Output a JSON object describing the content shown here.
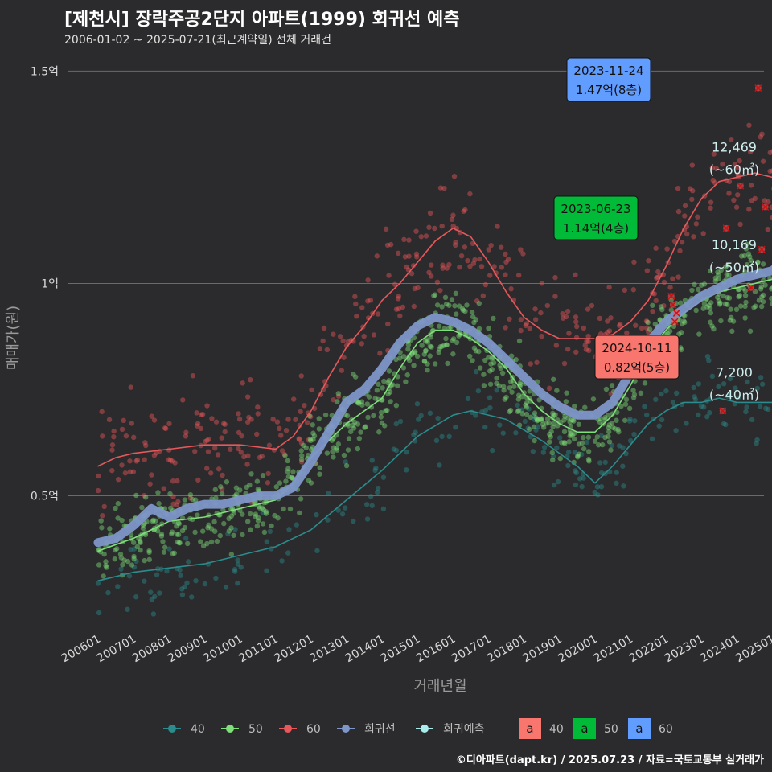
{
  "header": {
    "title": "[제천시] 장락주공2단지 아파트(1999) 회귀선 예측",
    "subtitle": "2006-01-02 ~ 2025-07-21(최근계약일) 전체 거래건"
  },
  "caption": "©디아파트(dapt.kr) / 2025.07.23 / 자료=국토교통부 실거래가",
  "colors": {
    "background": "#2b2b2d",
    "s40": "#2a8c8c",
    "s50": "#7fe07a",
    "s60": "#e8575a",
    "regression": "#7e96c8",
    "forecast": "#a8ecec",
    "ann40": "#f8766d",
    "ann50": "#00ba38",
    "ann60": "#619cff",
    "gridline": "#6a6a6a"
  },
  "chart_data": {
    "type": "line",
    "title": "[제천시] 장락주공2단지 아파트(1999) 회귀선 예측",
    "xlabel": "거래년월",
    "ylabel": "매매가(원)",
    "x_range": [
      2006.0,
      2025.6
    ],
    "ylim": [
      0.2,
      1.55
    ],
    "x_ticks": [
      "200601",
      "200701",
      "200801",
      "200901",
      "201001",
      "201101",
      "201201",
      "201301",
      "201401",
      "201501",
      "201601",
      "201701",
      "201801",
      "201901",
      "202001",
      "202101",
      "202201",
      "202301",
      "202401",
      "202501"
    ],
    "y_ticks": [
      {
        "value": 0.5,
        "label": "0.5억"
      },
      {
        "value": 1.0,
        "label": "1억"
      },
      {
        "value": 1.5,
        "label": "1.5억"
      }
    ],
    "series": [
      {
        "name": "40",
        "color_key": "s40",
        "points": [
          [
            2006.0,
            0.3
          ],
          [
            2007.0,
            0.32
          ],
          [
            2008.0,
            0.33
          ],
          [
            2009.0,
            0.34
          ],
          [
            2010.0,
            0.36
          ],
          [
            2011.0,
            0.38
          ],
          [
            2012.0,
            0.42
          ],
          [
            2013.0,
            0.49
          ],
          [
            2014.0,
            0.56
          ],
          [
            2015.0,
            0.64
          ],
          [
            2016.0,
            0.69
          ],
          [
            2016.5,
            0.7
          ],
          [
            2017.5,
            0.68
          ],
          [
            2018.5,
            0.63
          ],
          [
            2019.5,
            0.57
          ],
          [
            2020.0,
            0.53
          ],
          [
            2020.5,
            0.57
          ],
          [
            2021.0,
            0.62
          ],
          [
            2021.5,
            0.67
          ],
          [
            2022.0,
            0.7
          ],
          [
            2022.5,
            0.72
          ],
          [
            2023.0,
            0.72
          ],
          [
            2023.5,
            0.73
          ],
          [
            2024.0,
            0.72
          ],
          [
            2024.5,
            0.72
          ],
          [
            2025.2,
            0.72
          ],
          [
            2025.4,
            0.72
          ]
        ]
      },
      {
        "name": "50",
        "color_key": "s50",
        "points": [
          [
            2006.0,
            0.37
          ],
          [
            2007.0,
            0.4
          ],
          [
            2008.0,
            0.44
          ],
          [
            2009.0,
            0.45
          ],
          [
            2010.0,
            0.47
          ],
          [
            2011.0,
            0.49
          ],
          [
            2011.5,
            0.53
          ],
          [
            2012.0,
            0.59
          ],
          [
            2013.0,
            0.67
          ],
          [
            2014.0,
            0.73
          ],
          [
            2014.5,
            0.8
          ],
          [
            2015.0,
            0.86
          ],
          [
            2015.5,
            0.89
          ],
          [
            2016.0,
            0.89
          ],
          [
            2016.5,
            0.87
          ],
          [
            2017.0,
            0.84
          ],
          [
            2017.5,
            0.8
          ],
          [
            2018.0,
            0.74
          ],
          [
            2018.5,
            0.7
          ],
          [
            2019.0,
            0.67
          ],
          [
            2019.5,
            0.65
          ],
          [
            2020.0,
            0.65
          ],
          [
            2020.5,
            0.69
          ],
          [
            2021.0,
            0.76
          ],
          [
            2021.5,
            0.84
          ],
          [
            2022.0,
            0.89
          ],
          [
            2022.5,
            0.93
          ],
          [
            2023.0,
            0.96
          ],
          [
            2023.5,
            0.98
          ],
          [
            2024.0,
            0.99
          ],
          [
            2024.5,
            1.0
          ],
          [
            2025.0,
            1.01
          ],
          [
            2025.4,
            1.02
          ]
        ]
      },
      {
        "name": "60",
        "color_key": "s60",
        "points": [
          [
            2006.0,
            0.57
          ],
          [
            2006.5,
            0.59
          ],
          [
            2007.0,
            0.6
          ],
          [
            2008.0,
            0.61
          ],
          [
            2009.0,
            0.62
          ],
          [
            2010.0,
            0.62
          ],
          [
            2011.0,
            0.61
          ],
          [
            2011.5,
            0.64
          ],
          [
            2012.0,
            0.7
          ],
          [
            2012.5,
            0.78
          ],
          [
            2013.0,
            0.85
          ],
          [
            2013.5,
            0.9
          ],
          [
            2014.0,
            0.96
          ],
          [
            2014.5,
            1.0
          ],
          [
            2015.0,
            1.05
          ],
          [
            2015.5,
            1.1
          ],
          [
            2016.0,
            1.13
          ],
          [
            2016.5,
            1.11
          ],
          [
            2017.0,
            1.05
          ],
          [
            2017.5,
            0.98
          ],
          [
            2018.0,
            0.92
          ],
          [
            2018.5,
            0.89
          ],
          [
            2019.0,
            0.87
          ],
          [
            2019.5,
            0.87
          ],
          [
            2020.0,
            0.87
          ],
          [
            2020.5,
            0.88
          ],
          [
            2021.0,
            0.91
          ],
          [
            2021.5,
            0.96
          ],
          [
            2022.0,
            1.04
          ],
          [
            2022.5,
            1.13
          ],
          [
            2023.0,
            1.2
          ],
          [
            2023.5,
            1.24
          ],
          [
            2024.0,
            1.25
          ],
          [
            2024.5,
            1.26
          ],
          [
            2025.0,
            1.25
          ],
          [
            2025.4,
            1.25
          ]
        ]
      },
      {
        "name": "회귀선",
        "color_key": "regression",
        "points": [
          [
            2006.0,
            0.39
          ],
          [
            2006.5,
            0.4
          ],
          [
            2007.0,
            0.43
          ],
          [
            2007.5,
            0.47
          ],
          [
            2008.0,
            0.45
          ],
          [
            2008.5,
            0.47
          ],
          [
            2009.0,
            0.48
          ],
          [
            2009.5,
            0.48
          ],
          [
            2010.0,
            0.49
          ],
          [
            2010.5,
            0.5
          ],
          [
            2011.0,
            0.5
          ],
          [
            2011.5,
            0.52
          ],
          [
            2012.0,
            0.58
          ],
          [
            2012.5,
            0.65
          ],
          [
            2013.0,
            0.72
          ],
          [
            2013.5,
            0.75
          ],
          [
            2014.0,
            0.8
          ],
          [
            2014.5,
            0.86
          ],
          [
            2015.0,
            0.9
          ],
          [
            2015.5,
            0.92
          ],
          [
            2016.0,
            0.91
          ],
          [
            2016.5,
            0.89
          ],
          [
            2017.0,
            0.86
          ],
          [
            2017.5,
            0.82
          ],
          [
            2018.0,
            0.78
          ],
          [
            2018.5,
            0.74
          ],
          [
            2019.0,
            0.71
          ],
          [
            2019.5,
            0.69
          ],
          [
            2020.0,
            0.69
          ],
          [
            2020.5,
            0.72
          ],
          [
            2021.0,
            0.79
          ],
          [
            2021.5,
            0.86
          ],
          [
            2022.0,
            0.91
          ],
          [
            2022.5,
            0.94
          ],
          [
            2023.0,
            0.97
          ],
          [
            2023.5,
            0.99
          ],
          [
            2024.0,
            1.01
          ],
          [
            2024.5,
            1.02
          ],
          [
            2025.0,
            1.03
          ],
          [
            2025.4,
            1.06
          ]
        ]
      },
      {
        "name": "회귀예측",
        "color_key": "forecast",
        "points": []
      }
    ],
    "end_labels": [
      {
        "series": "60",
        "x": 2025.4,
        "y": 1.25,
        "count": "12,469",
        "size": "(~60㎡)"
      },
      {
        "series": "50",
        "x": 2025.4,
        "y": 1.02,
        "count": "10,169",
        "size": "(~50㎡)"
      },
      {
        "series": "40",
        "x": 2025.4,
        "y": 0.72,
        "count": "7,200",
        "size": "(~40㎡)"
      }
    ],
    "annotations": [
      {
        "series": "60",
        "date": "2023-11-24",
        "price": "1.47억(8층)",
        "x": 2023.9,
        "y": 1.47,
        "color_key": "ann60"
      },
      {
        "series": "50",
        "date": "2023-06-23",
        "price": "1.14억(4층)",
        "x": 2023.48,
        "y": 1.14,
        "color_key": "ann50"
      },
      {
        "series": "40",
        "date": "2024-10-11",
        "price": "0.82억(5층)",
        "x": 2024.78,
        "y": 0.82,
        "color_key": "ann40"
      }
    ],
    "highlight_points": [
      [
        2022.15,
        0.97
      ],
      [
        2022.2,
        0.95
      ],
      [
        2022.3,
        0.93
      ],
      [
        2022.25,
        0.91
      ],
      [
        2023.7,
        1.13
      ],
      [
        2024.1,
        1.23
      ],
      [
        2024.6,
        1.46
      ],
      [
        2024.7,
        1.08
      ],
      [
        2025.1,
        0.96
      ],
      [
        2023.6,
        0.7
      ],
      [
        2024.4,
        0.99
      ],
      [
        2024.8,
        1.18
      ]
    ]
  },
  "legend": {
    "lines": [
      {
        "label": "40",
        "color_key": "s40"
      },
      {
        "label": "50",
        "color_key": "s50"
      },
      {
        "label": "60",
        "color_key": "s60"
      },
      {
        "label": "회귀선",
        "color_key": "regression"
      },
      {
        "label": "회귀예측",
        "color_key": "forecast"
      }
    ],
    "boxes": [
      {
        "glyph": "a",
        "label": "40",
        "color_key": "ann40"
      },
      {
        "glyph": "a",
        "label": "50",
        "color_key": "ann50"
      },
      {
        "glyph": "a",
        "label": "60",
        "color_key": "ann60"
      }
    ]
  }
}
